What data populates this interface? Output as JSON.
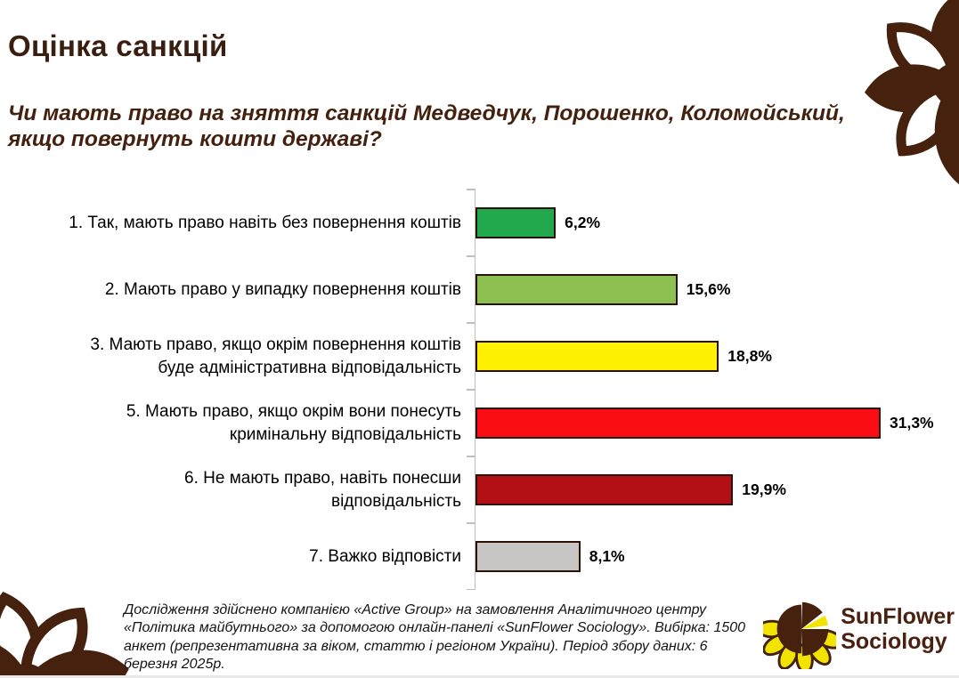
{
  "page": {
    "title": "Оцінка санкцій",
    "question": "Чи мають право на зняття санкцій Медведчук, Порошенко, Коломойський, якщо повернуть кошти державі?",
    "footnote": "Дослідження здійснено компанією «Active Group» на замовлення Аналітичного центру «Політика майбутнього» за допомогою онлайн-панелі «SunFlower Sociology». Вибірка: 1500 анкет (репрезентативна за віком, статтю і регіоном України). Період збору даних: 6 березня 2025р.",
    "logo": {
      "line1": "SunFlower",
      "line2": "Sociology"
    }
  },
  "chart_data": {
    "type": "bar",
    "orientation": "horizontal",
    "title": "Чи мають право на зняття санкцій Медведчук, Порошенко, Коломойський, якщо повернуть кошти державі?",
    "categories": [
      "1. Так, мають право навіть без повернення коштів",
      "2. Мають право у випадку повернення коштів",
      "3. Мають право, якщо окрім повернення коштів буде адміністративна відповідальність",
      "5. Мають право, якщо окрім вони понесуть кримінальну відповідальність",
      "6. Не мають право, навіть понесши відповідальність",
      "7. Важко відповісти"
    ],
    "label_lines": [
      [
        "1. Так, мають право навіть без повернення коштів"
      ],
      [
        "2. Мають право у випадку повернення коштів"
      ],
      [
        "3. Мають право, якщо окрім повернення коштів",
        "буде адміністративна відповідальність"
      ],
      [
        "5. Мають право, якщо окрім вони понесуть",
        "кримінальну відповідальність"
      ],
      [
        "6. Не мають право, навіть понесши",
        "відповідальність"
      ],
      [
        "7. Важко відповісти"
      ]
    ],
    "values": [
      6.2,
      15.6,
      18.8,
      31.3,
      19.9,
      8.1
    ],
    "value_labels": [
      "6,2%",
      "15,6%",
      "18,8%",
      "31,3%",
      "19,9%",
      "8,1%"
    ],
    "bar_colors": [
      "#22A84D",
      "#8CC152",
      "#FFF101",
      "#FB0D14",
      "#B21014",
      "#C7C6C5"
    ],
    "bar_border_color": "#2A1207",
    "axis_color": "#BFBFBF",
    "xlim": [
      0,
      32
    ],
    "grid": false,
    "legend": false,
    "data_labels": true
  },
  "colors": {
    "brand_brown": "#45210E",
    "title_text": "#3A1F10",
    "question_text": "#43210E",
    "logo_yellow": "#F2E300"
  }
}
